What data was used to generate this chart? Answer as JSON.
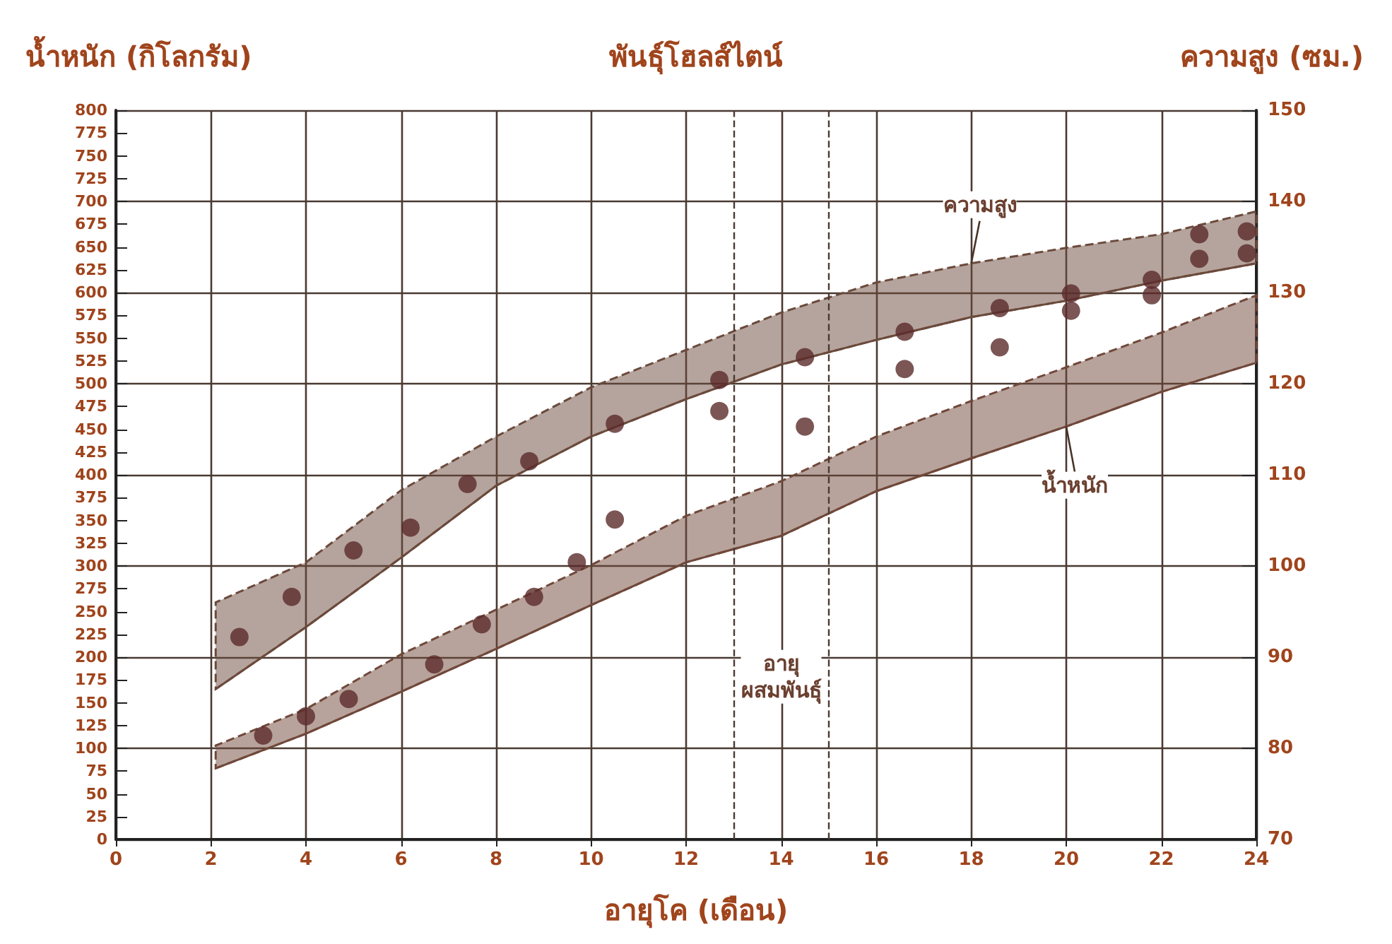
{
  "chart_data": {
    "type": "line",
    "title": "พันธุ์โฮลส์ไตน์",
    "xlabel": "อายุโค (เดือน)",
    "ylabel": "น้ำหนัก (กิโลกรัม)",
    "y2label": "ความสูง (ซม.)",
    "series": [
      {
        "color": "#6b4a3c",
        "axis": "y2",
        "x": [
          2.1,
          4,
          6,
          8,
          10,
          12,
          14,
          16,
          18,
          20,
          22,
          24
        ],
        "values": [
          86.5,
          93.3,
          100.9,
          108.8,
          114.2,
          118.3,
          122.1,
          124.8,
          127.3,
          129.1,
          131.3,
          133.2
        ],
        "lower": [
          86.5,
          93.3,
          100.9,
          108.8,
          114.2,
          118.3,
          122.1,
          124.8,
          127.3,
          129.1,
          131.3,
          133.2
        ],
        "upper": [
          96,
          100.4,
          108.3,
          114.2,
          119.6,
          123.7,
          127.8,
          131.1,
          133.2,
          134.9,
          136.4,
          138.9
        ]
      },
      {
        "color": "#70483a",
        "x": [
          2.1,
          4,
          6,
          8,
          10,
          12,
          14,
          16,
          18,
          20,
          22,
          24
        ],
        "values": [
          78,
          116,
          162,
          209,
          257,
          304,
          333,
          382,
          418,
          453,
          491,
          523
        ],
        "lower": [
          78,
          116,
          162,
          209,
          257,
          304,
          333,
          382,
          418,
          453,
          491,
          523
        ],
        "upper": [
          103,
          143,
          203,
          252,
          301,
          355,
          393,
          442,
          481,
          518,
          556,
          597
        ]
      },
      {
        "type": "scatter",
        "color": "#5b2a2a",
        "axis": "y2",
        "x": [
          2.6,
          3.7,
          5,
          6.2,
          7.4,
          8.7,
          10.5,
          12.7,
          14.5,
          16.6,
          18.6,
          20.1,
          21.8,
          22.8,
          23.8
        ],
        "values": [
          92.2,
          96.6,
          101.7,
          104.2,
          109,
          111.5,
          115.6,
          120.4,
          122.9,
          125.7,
          128.3,
          129.9,
          131.4,
          136.4,
          136.7
        ]
      },
      {
        "type": "scatter",
        "color": "#5b2a2a",
        "x": [
          3.1,
          4,
          4.9,
          6.7,
          7.7,
          8.8,
          9.7,
          10.5,
          12.7,
          14.5,
          16.6,
          18.6,
          20.1,
          21.8,
          22.8,
          23.8
        ],
        "values": [
          114,
          135,
          154,
          192,
          236,
          266,
          304,
          351,
          470,
          453,
          516,
          540,
          580,
          597,
          637,
          643
        ]
      }
    ],
    "xlim": [
      0,
      24
    ],
    "xticks": [
      0,
      2,
      4,
      6,
      8,
      10,
      12,
      14,
      16,
      18,
      20,
      22,
      24
    ],
    "ylim": [
      0,
      800
    ],
    "yticks": [
      0,
      25,
      50,
      75,
      100,
      125,
      150,
      175,
      200,
      225,
      250,
      275,
      300,
      325,
      350,
      375,
      400,
      425,
      450,
      475,
      500,
      525,
      550,
      575,
      600,
      625,
      650,
      675,
      700,
      725,
      750,
      775,
      800
    ],
    "y2lim": [
      70,
      150
    ],
    "y2ticks": [
      70,
      80,
      90,
      100,
      110,
      120,
      130,
      140,
      150
    ],
    "ref_lines": [
      {
        "axis": "x",
        "value": 13,
        "line_style": "dashed"
      },
      {
        "axis": "x",
        "value": 15,
        "line_style": "dashed"
      }
    ],
    "annotations": [
      {
        "text": "ความสูง",
        "x": 18,
        "y": 632
      },
      {
        "text": "น้ำหนัก",
        "x": 20,
        "y": 453
      },
      "อายุ\nผสมพันธุ์"
    ],
    "grid": true
  }
}
